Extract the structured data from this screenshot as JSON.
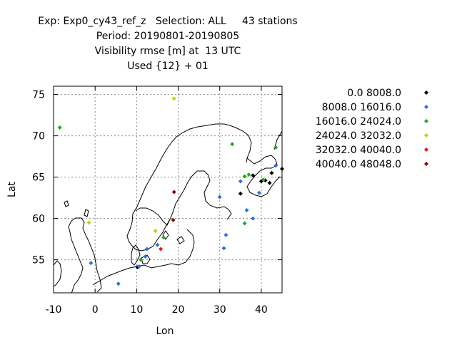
{
  "chart_data": {
    "type": "scatter",
    "title_lines": [
      "Exp: Exp0_cy43_ref_z   Selection: ALL     43 stations",
      "Period: 20190801-20190805",
      "Visibility rmse [m] at  13 UTC",
      "Used {12} + 01"
    ],
    "xlabel": "Lon",
    "ylabel": "Lat",
    "xlim": [
      -10,
      45
    ],
    "ylim": [
      51,
      76
    ],
    "xticks": [
      -10,
      0,
      10,
      20,
      30,
      40
    ],
    "yticks": [
      55,
      60,
      65,
      70,
      75
    ],
    "grid": true,
    "legend_position": "right",
    "series": [
      {
        "name": "0.0 8008.0",
        "color": "#000000",
        "points": [
          [
            10.2,
            54.1
          ],
          [
            35.0,
            63.0
          ],
          [
            38.0,
            65.2
          ],
          [
            41.0,
            64.6
          ],
          [
            42.5,
            65.5
          ],
          [
            45.0,
            66.0
          ],
          [
            42.0,
            64.3
          ],
          [
            40.0,
            64.5
          ]
        ]
      },
      {
        "name": "8008.0 16016.0",
        "color": "#2e6fdc",
        "points": [
          [
            -1.0,
            54.6
          ],
          [
            5.6,
            52.1
          ],
          [
            10.6,
            54.2
          ],
          [
            12.1,
            55.4
          ],
          [
            15.0,
            56.8
          ],
          [
            12.5,
            56.3
          ],
          [
            30.0,
            62.6
          ],
          [
            31.5,
            58.0
          ],
          [
            31.0,
            56.4
          ],
          [
            36.5,
            61.0
          ],
          [
            38.0,
            60.0
          ],
          [
            39.5,
            63.1
          ],
          [
            43.5,
            66.4
          ],
          [
            35.0,
            64.5
          ]
        ]
      },
      {
        "name": "16016.0 24024.0",
        "color": "#22aa22",
        "points": [
          [
            -8.5,
            71.0
          ],
          [
            11.0,
            55.0
          ],
          [
            16.5,
            57.7
          ],
          [
            33.0,
            69.0
          ],
          [
            36.0,
            65.1
          ],
          [
            36.0,
            59.4
          ],
          [
            37.0,
            65.3
          ],
          [
            40.5,
            64.7
          ],
          [
            43.5,
            68.6
          ]
        ]
      },
      {
        "name": "24024.0 32032.0",
        "color": "#cccc00",
        "points": [
          [
            19.0,
            74.5
          ],
          [
            -1.5,
            59.5
          ],
          [
            14.5,
            58.5
          ]
        ]
      },
      {
        "name": "32032.0 40040.0",
        "color": "#ee1111",
        "points": [
          [
            15.8,
            56.3
          ]
        ]
      },
      {
        "name": "40040.0 48048.0",
        "color": "#8b0000",
        "points": [
          [
            19.0,
            63.2
          ],
          [
            18.8,
            59.8
          ]
        ]
      }
    ]
  }
}
